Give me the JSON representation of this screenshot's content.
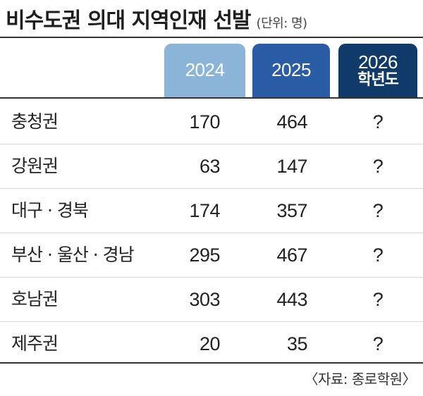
{
  "title": "비수도권 의대 지역인재 선발",
  "unit": "(단위: 명)",
  "columns": [
    {
      "year": "2024",
      "sub": ""
    },
    {
      "year": "2025",
      "sub": ""
    },
    {
      "year": "2026",
      "sub": "학년도"
    }
  ],
  "rows": [
    {
      "region": "충청권",
      "v2024": "170",
      "v2025": "464",
      "v2026": "?"
    },
    {
      "region": "강원권",
      "v2024": "63",
      "v2025": "147",
      "v2026": "?"
    },
    {
      "region": "대구 · 경북",
      "v2024": "174",
      "v2025": "357",
      "v2026": "?"
    },
    {
      "region": "부산 · 울산 · 경남",
      "v2024": "295",
      "v2025": "467",
      "v2026": "?"
    },
    {
      "region": "호남권",
      "v2024": "303",
      "v2025": "443",
      "v2026": "?"
    },
    {
      "region": "제주권",
      "v2024": "20",
      "v2025": "35",
      "v2026": "?"
    }
  ],
  "source": "〈자료: 종로학원〉",
  "colors": {
    "col_2024": "#8bb4d9",
    "col_2025": "#2b5ca6",
    "col_2026": "#0f3a6a"
  }
}
